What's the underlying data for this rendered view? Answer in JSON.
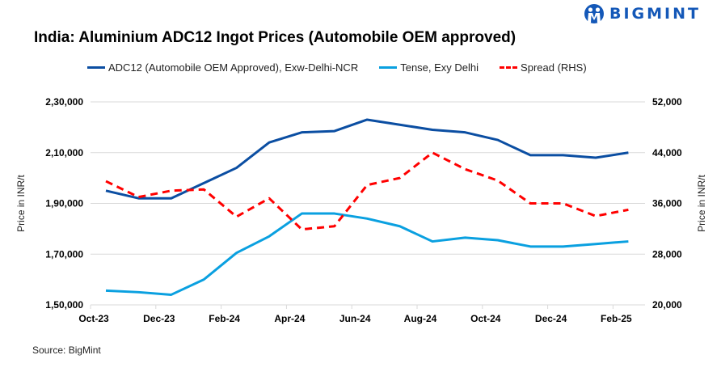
{
  "logo": {
    "text": "BIGMINT"
  },
  "source": "Source: BigMint",
  "chart_data": {
    "type": "line",
    "title": "India: Aluminium ADC12 Ingot Prices (Automobile OEM approved)",
    "x": [
      "Oct-23",
      "Nov-23",
      "Dec-23",
      "Jan-24",
      "Feb-24",
      "Mar-24",
      "Apr-24",
      "May-24",
      "Jun-24",
      "Jul-24",
      "Aug-24",
      "Sep-24",
      "Oct-24",
      "Nov-24",
      "Dec-24",
      "Jan-25",
      "Feb-25"
    ],
    "xtick_labels": [
      "Oct-23",
      "Dec-23",
      "Feb-24",
      "Apr-24",
      "Jun-24",
      "Aug-24",
      "Oct-24",
      "Dec-24",
      "Feb-25"
    ],
    "ylabel": "Price in INR/t",
    "y2label": "Price in INR/t",
    "ylim": [
      150000,
      230000
    ],
    "y2lim": [
      20000,
      52000
    ],
    "ytick_labels": [
      "1,50,000",
      "1,70,000",
      "1,90,000",
      "2,10,000",
      "2,30,000"
    ],
    "y2tick_labels": [
      "20,000",
      "28,000",
      "36,000",
      "44,000",
      "52,000"
    ],
    "grid": true,
    "legend_position": "top",
    "series": [
      {
        "name": "ADC12 (Automobile OEM Approved), Exw-Delhi-NCR",
        "axis": "left",
        "color": "#0b4ea2",
        "style": "solid",
        "values": [
          195000,
          192000,
          192000,
          198000,
          204000,
          214000,
          218000,
          218500,
          223000,
          221000,
          219000,
          218000,
          215000,
          209000,
          209000,
          208000,
          210000
        ]
      },
      {
        "name": "Tense, Exy Delhi",
        "axis": "left",
        "color": "#0aa0e0",
        "style": "solid",
        "values": [
          155600,
          155000,
          154000,
          160000,
          170500,
          177000,
          186000,
          186000,
          184000,
          181000,
          175000,
          176500,
          175500,
          173000,
          173000,
          174000,
          175000
        ]
      },
      {
        "name": "Spread (RHS)",
        "axis": "right",
        "color": "#ff0000",
        "style": "dashed",
        "values": [
          39500,
          37000,
          38000,
          38200,
          33900,
          36800,
          31900,
          32400,
          38900,
          40000,
          44000,
          41400,
          39600,
          36000,
          36000,
          34000,
          35000
        ]
      }
    ]
  }
}
